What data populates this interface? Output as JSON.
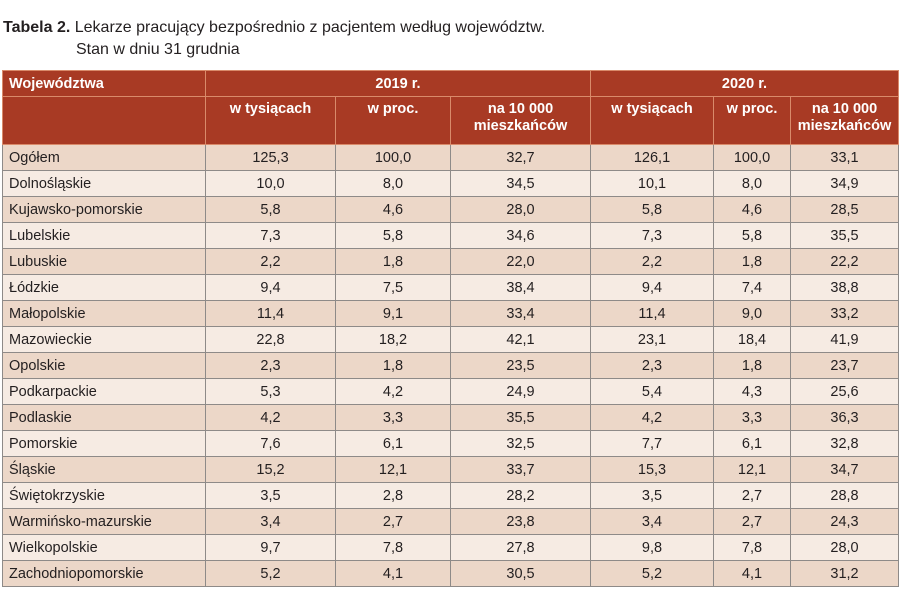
{
  "title": {
    "label": "Tabela 2.",
    "line1": "Lekarze pracujący bezpośrednio z pacjentem według województw.",
    "line2": "Stan w dniu 31 grudnia"
  },
  "header": {
    "region": "Województwa",
    "years": [
      "2019 r.",
      "2020 r."
    ],
    "sub": [
      "w tysiącach",
      "w proc.",
      "na 10 000 mieszkańców"
    ]
  },
  "colors": {
    "header": "#a83a24",
    "row_odd": "#ecd7c8",
    "row_even": "#f6ebe3"
  },
  "rows": [
    [
      "Ogółem",
      "125,3",
      "100,0",
      "32,7",
      "126,1",
      "100,0",
      "33,1"
    ],
    [
      "Dolnośląskie",
      "10,0",
      "8,0",
      "34,5",
      "10,1",
      "8,0",
      "34,9"
    ],
    [
      "Kujawsko-pomorskie",
      "5,8",
      "4,6",
      "28,0",
      "5,8",
      "4,6",
      "28,5"
    ],
    [
      "Lubelskie",
      "7,3",
      "5,8",
      "34,6",
      "7,3",
      "5,8",
      "35,5"
    ],
    [
      "Lubuskie",
      "2,2",
      "1,8",
      "22,0",
      "2,2",
      "1,8",
      "22,2"
    ],
    [
      "Łódzkie",
      "9,4",
      "7,5",
      "38,4",
      "9,4",
      "7,4",
      "38,8"
    ],
    [
      "Małopolskie",
      "11,4",
      "9,1",
      "33,4",
      "11,4",
      "9,0",
      "33,2"
    ],
    [
      "Mazowieckie",
      "22,8",
      "18,2",
      "42,1",
      "23,1",
      "18,4",
      "41,9"
    ],
    [
      "Opolskie",
      "2,3",
      "1,8",
      "23,5",
      "2,3",
      "1,8",
      "23,7"
    ],
    [
      "Podkarpackie",
      "5,3",
      "4,2",
      "24,9",
      "5,4",
      "4,3",
      "25,6"
    ],
    [
      "Podlaskie",
      "4,2",
      "3,3",
      "35,5",
      "4,2",
      "3,3",
      "36,3"
    ],
    [
      "Pomorskie",
      "7,6",
      "6,1",
      "32,5",
      "7,7",
      "6,1",
      "32,8"
    ],
    [
      "Śląskie",
      "15,2",
      "12,1",
      "33,7",
      "15,3",
      "12,1",
      "34,7"
    ],
    [
      "Świętokrzyskie",
      "3,5",
      "2,8",
      "28,2",
      "3,5",
      "2,7",
      "28,8"
    ],
    [
      "Warmińsko-mazurskie",
      "3,4",
      "2,7",
      "23,8",
      "3,4",
      "2,7",
      "24,3"
    ],
    [
      "Wielkopolskie",
      "9,7",
      "7,8",
      "27,8",
      "9,8",
      "7,8",
      "28,0"
    ],
    [
      "Zachodniopomorskie",
      "5,2",
      "4,1",
      "30,5",
      "5,2",
      "4,1",
      "31,2"
    ]
  ]
}
